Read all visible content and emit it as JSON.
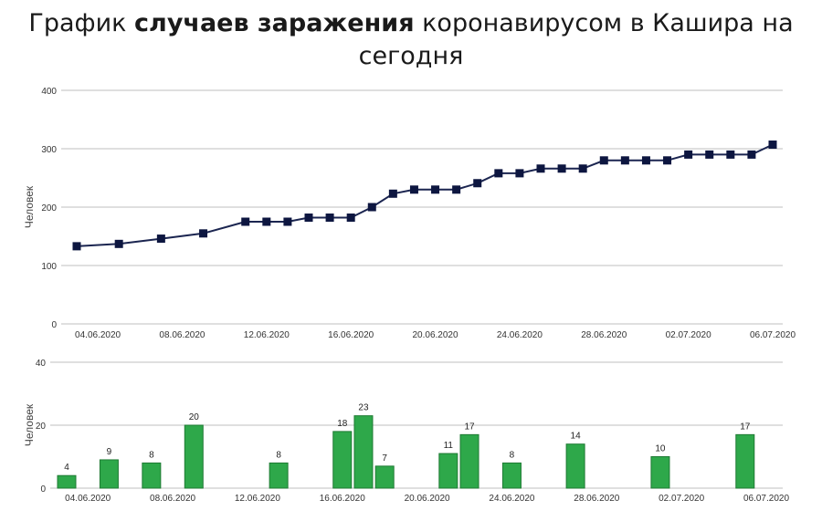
{
  "title": {
    "part1": "График ",
    "bold": "случаев заражения",
    "part2": " коронавирусом в Кашира на сегодня"
  },
  "colors": {
    "line": "#1b2550",
    "marker": "#0d1640",
    "bar": "#2ea84a",
    "bar_stroke": "#1e7a33",
    "grid": "#bfbfbf"
  },
  "chart_data": [
    {
      "type": "line",
      "ylabel": "Человек",
      "ylim": [
        0,
        400
      ],
      "yticks": [
        0,
        100,
        200,
        300,
        400
      ],
      "grid": true,
      "xlim": [
        "2020-06-03",
        "2020-07-06"
      ],
      "xtick_dates": [
        "2020-06-04",
        "2020-06-08",
        "2020-06-12",
        "2020-06-16",
        "2020-06-20",
        "2020-06-24",
        "2020-06-28",
        "2020-07-02",
        "2020-07-06"
      ],
      "xtick_labels": [
        "04.06.2020",
        "08.06.2020",
        "12.06.2020",
        "16.06.2020",
        "20.06.2020",
        "24.06.2020",
        "28.06.2020",
        "02.07.2020",
        "06.07.2020"
      ],
      "x": [
        "2020-06-03",
        "2020-06-05",
        "2020-06-07",
        "2020-06-09",
        "2020-06-11",
        "2020-06-12",
        "2020-06-13",
        "2020-06-14",
        "2020-06-15",
        "2020-06-16",
        "2020-06-17",
        "2020-06-18",
        "2020-06-19",
        "2020-06-20",
        "2020-06-21",
        "2020-06-22",
        "2020-06-23",
        "2020-06-24",
        "2020-06-25",
        "2020-06-26",
        "2020-06-27",
        "2020-06-28",
        "2020-06-29",
        "2020-06-30",
        "2020-07-01",
        "2020-07-02",
        "2020-07-03",
        "2020-07-04",
        "2020-07-05",
        "2020-07-06"
      ],
      "y": [
        133,
        137,
        146,
        155,
        175,
        175,
        175,
        182,
        182,
        182,
        200,
        223,
        230,
        230,
        230,
        241,
        258,
        258,
        266,
        266,
        266,
        280,
        280,
        280,
        280,
        290,
        290,
        290,
        290,
        307
      ]
    },
    {
      "type": "bar",
      "ylabel": "Человек",
      "ylim": [
        0,
        40
      ],
      "yticks": [
        0,
        20,
        40
      ],
      "grid": true,
      "xlim": [
        "2020-06-03",
        "2020-07-06"
      ],
      "xtick_dates": [
        "2020-06-04",
        "2020-06-08",
        "2020-06-12",
        "2020-06-16",
        "2020-06-20",
        "2020-06-24",
        "2020-06-28",
        "2020-07-02",
        "2020-07-06"
      ],
      "xtick_labels": [
        "04.06.2020",
        "08.06.2020",
        "12.06.2020",
        "16.06.2020",
        "20.06.2020",
        "24.06.2020",
        "28.06.2020",
        "02.07.2020",
        "06.07.2020"
      ],
      "x": [
        "2020-06-03",
        "2020-06-05",
        "2020-06-07",
        "2020-06-09",
        "2020-06-13",
        "2020-06-16",
        "2020-06-17",
        "2020-06-18",
        "2020-06-21",
        "2020-06-22",
        "2020-06-24",
        "2020-06-27",
        "2020-07-01",
        "2020-07-05"
      ],
      "values": [
        4,
        9,
        8,
        20,
        8,
        18,
        23,
        7,
        11,
        17,
        8,
        14,
        10,
        17
      ]
    }
  ]
}
